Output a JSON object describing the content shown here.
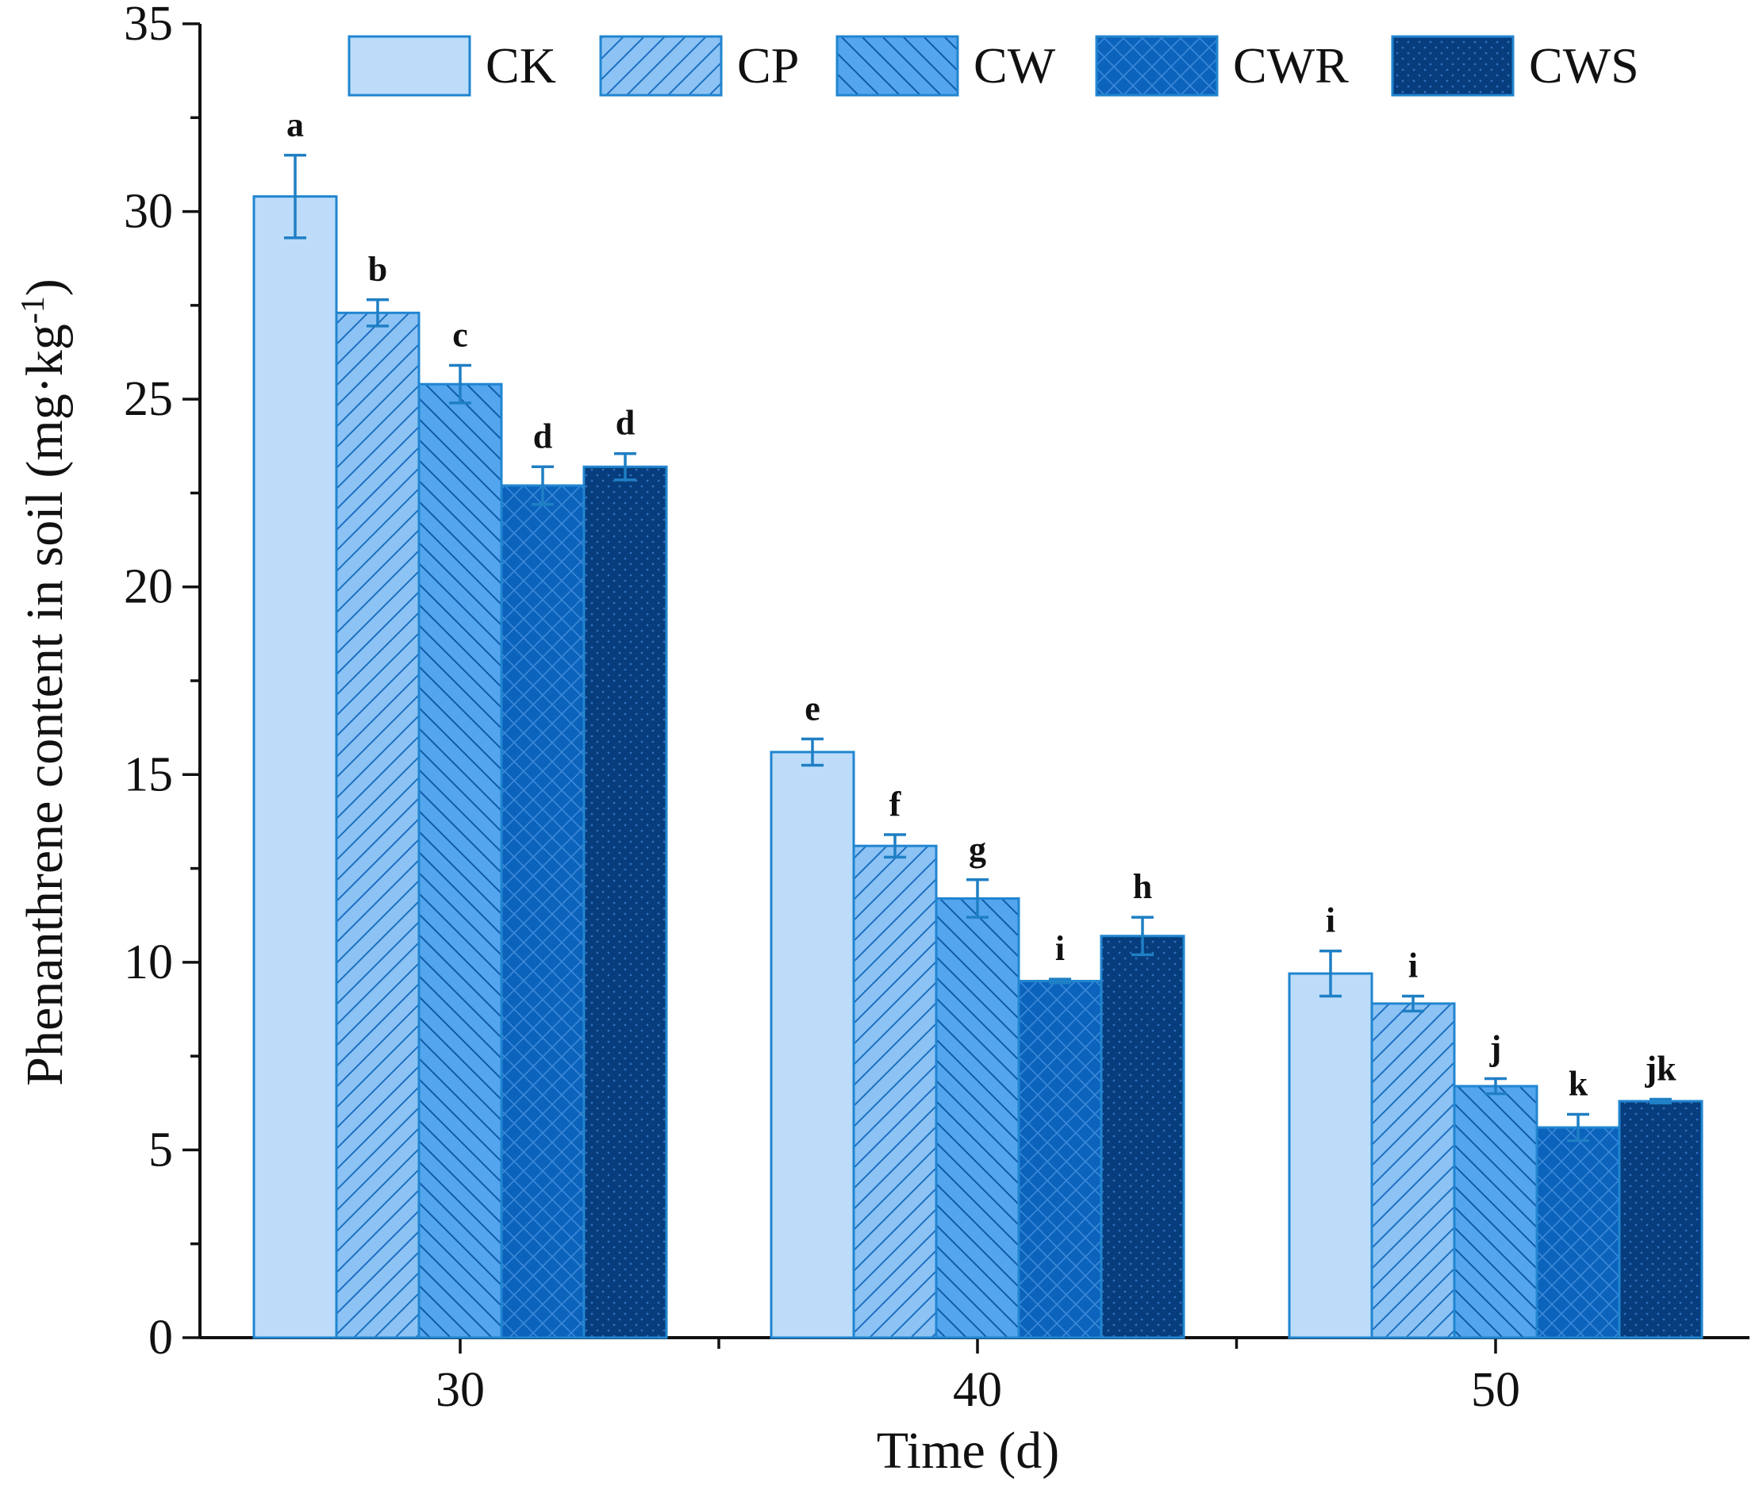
{
  "chart_data": {
    "type": "bar",
    "title": "",
    "xlabel": "Time (d)",
    "ylabel": "Phenanthrene content in soil (mg·kg",
    "ylabel_superscript": "-1",
    "ylabel_close": ")",
    "ylim": [
      0,
      35
    ],
    "yticks": [
      0,
      5,
      10,
      15,
      20,
      25,
      30,
      35
    ],
    "categories": [
      "30",
      "40",
      "50"
    ],
    "legend_position": "top-right",
    "series": [
      {
        "name": "CK",
        "values": [
          30.4,
          15.6,
          9.7
        ],
        "errors": [
          1.1,
          0.35,
          0.6
        ],
        "letters": [
          "a",
          "e",
          "i"
        ],
        "fill": "#bcdcf9",
        "pattern": "none"
      },
      {
        "name": "CP",
        "values": [
          27.3,
          13.1,
          8.9
        ],
        "errors": [
          0.35,
          0.3,
          0.2
        ],
        "letters": [
          "b",
          "f",
          "i"
        ],
        "fill": "#8cc3f4",
        "pattern": "diag-up"
      },
      {
        "name": "CW",
        "values": [
          25.4,
          11.7,
          6.7
        ],
        "errors": [
          0.5,
          0.5,
          0.2
        ],
        "letters": [
          "c",
          "g",
          "j"
        ],
        "fill": "#53a5ee",
        "pattern": "diag-down"
      },
      {
        "name": "CWR",
        "values": [
          22.7,
          9.5,
          5.6
        ],
        "errors": [
          0.5,
          0.05,
          0.35
        ],
        "letters": [
          "d",
          "i",
          "k"
        ],
        "fill": "#0b63bc",
        "pattern": "cross"
      },
      {
        "name": "CWS",
        "values": [
          23.2,
          10.7,
          6.3
        ],
        "errors": [
          0.35,
          0.5,
          0.05
        ],
        "letters": [
          "d",
          "h",
          "jk"
        ],
        "fill": "#073d7c",
        "pattern": "dots"
      }
    ],
    "colors": {
      "axis": "#111111",
      "bar_edge": "#2185d0",
      "error_bar": "#1f7fc4"
    }
  }
}
